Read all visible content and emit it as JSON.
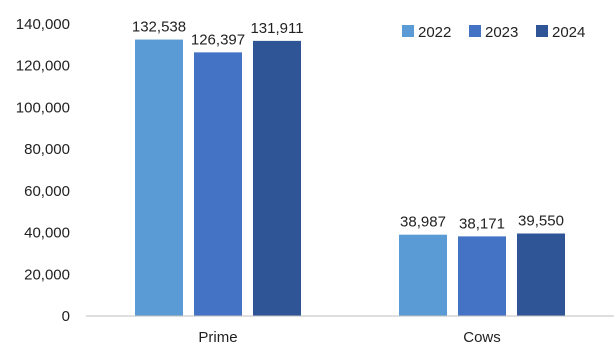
{
  "chart_data": {
    "type": "bar",
    "title": "",
    "xlabel": "",
    "ylabel": "",
    "categories": [
      "Prime",
      "Cows"
    ],
    "series": [
      {
        "name": "2022",
        "color": "#5b9bd5",
        "values": [
          132538,
          38987
        ],
        "labels": [
          "132,538",
          "38,987"
        ]
      },
      {
        "name": "2023",
        "color": "#4472c4",
        "values": [
          126397,
          38171
        ],
        "labels": [
          "126,397",
          "38,171"
        ]
      },
      {
        "name": "2024",
        "color": "#2f5597",
        "values": [
          131911,
          39550
        ],
        "labels": [
          "131,911",
          "39,550"
        ]
      }
    ],
    "ylim": [
      0,
      140000
    ],
    "yticks": [
      0,
      20000,
      40000,
      60000,
      80000,
      100000,
      120000,
      140000
    ],
    "ytick_labels": [
      "0",
      "20,000",
      "40,000",
      "60,000",
      "80,000",
      "100,000",
      "120,000",
      "140,000"
    ],
    "grid": false,
    "legend_position": "top-right"
  }
}
